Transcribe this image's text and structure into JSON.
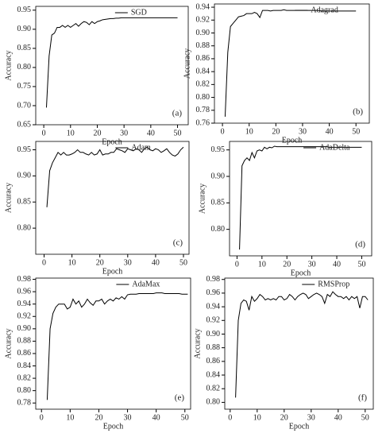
{
  "chart_data": [
    {
      "type": "line",
      "xlabel": "Epoch",
      "ylabel": "Accuracy",
      "annotation": "(a)",
      "xlim": [
        -3,
        54
      ],
      "xticks": [
        0,
        10,
        20,
        30,
        40,
        50
      ],
      "ylim": [
        0.65,
        0.96
      ],
      "yticks": [
        0.65,
        {
          "value": 0.7,
          "label": "0.70"
        },
        0.75,
        {
          "value": 0.8,
          "label": "0.80"
        },
        0.85,
        {
          "value": 0.9,
          "label": "0.90"
        },
        0.95
      ],
      "x": [
        1,
        2,
        3,
        4,
        5,
        6,
        7,
        8,
        9,
        10,
        11,
        12,
        13,
        14,
        15,
        16,
        17,
        18,
        19,
        20,
        21,
        22,
        23,
        24,
        25,
        26,
        27,
        28,
        29,
        30,
        31,
        32,
        33,
        34,
        35,
        36,
        37,
        38,
        39,
        40,
        41,
        42,
        43,
        44,
        45,
        46,
        47,
        48,
        49,
        50
      ],
      "series": [
        {
          "name": "SGD",
          "color": "#000000",
          "values": [
            0.695,
            0.83,
            0.885,
            0.89,
            0.905,
            0.905,
            0.91,
            0.905,
            0.91,
            0.905,
            0.91,
            0.915,
            0.908,
            0.915,
            0.92,
            0.918,
            0.912,
            0.92,
            0.915,
            0.92,
            0.922,
            0.925,
            0.926,
            0.927,
            0.928,
            0.928,
            0.929,
            0.929,
            0.93,
            0.93,
            0.93,
            0.93,
            0.93,
            0.93,
            0.93,
            0.93,
            0.93,
            0.93,
            0.93,
            0.93,
            0.93,
            0.93,
            0.93,
            0.93,
            0.93,
            0.93,
            0.93,
            0.93,
            0.93,
            0.93
          ]
        }
      ]
    },
    {
      "type": "line",
      "xlabel": "Epoch",
      "ylabel": "Accuracy",
      "annotation": "(b)",
      "xlim": [
        -3,
        55
      ],
      "xticks": [
        0,
        10,
        20,
        30,
        40,
        50
      ],
      "ylim": [
        0.76,
        0.945
      ],
      "yticks": [
        0.76,
        0.78,
        {
          "value": 0.8,
          "label": "0.80"
        },
        0.82,
        0.84,
        0.86,
        0.88,
        {
          "value": 0.9,
          "label": "0.90"
        },
        0.92,
        0.94
      ],
      "x": [
        1,
        2,
        3,
        4,
        5,
        6,
        7,
        8,
        9,
        10,
        11,
        12,
        13,
        14,
        15,
        16,
        17,
        18,
        19,
        20,
        21,
        22,
        23,
        24,
        25,
        26,
        27,
        28,
        29,
        30,
        31,
        32,
        33,
        34,
        35,
        36,
        37,
        38,
        39,
        40,
        41,
        42,
        43,
        44,
        45,
        46,
        47,
        48,
        49,
        50
      ],
      "series": [
        {
          "name": "Adagrad",
          "color": "#000000",
          "values": [
            0.77,
            0.87,
            0.91,
            0.915,
            0.92,
            0.925,
            0.926,
            0.927,
            0.93,
            0.93,
            0.93,
            0.932,
            0.93,
            0.924,
            0.935,
            0.935,
            0.935,
            0.934,
            0.935,
            0.935,
            0.935,
            0.935,
            0.936,
            0.935,
            0.935,
            0.935,
            0.935,
            0.935,
            0.935,
            0.935,
            0.935,
            0.935,
            0.935,
            0.935,
            0.935,
            0.935,
            0.934,
            0.934,
            0.934,
            0.934,
            0.934,
            0.934,
            0.934,
            0.934,
            0.934,
            0.934,
            0.934,
            0.934,
            0.934,
            0.934
          ]
        }
      ]
    },
    {
      "type": "line",
      "xlabel": "Epoch",
      "ylabel": "Accuracy",
      "annotation": "(c)",
      "xlim": [
        -3,
        52
      ],
      "xticks": [
        0,
        10,
        20,
        30,
        40,
        50
      ],
      "ylim": [
        0.75,
        0.966
      ],
      "yticks": [
        {
          "value": 0.8,
          "label": "0.80"
        },
        0.85,
        {
          "value": 0.9,
          "label": "0.90"
        },
        0.95
      ],
      "x": [
        1,
        2,
        3,
        4,
        5,
        6,
        7,
        8,
        9,
        10,
        11,
        12,
        13,
        14,
        15,
        16,
        17,
        18,
        19,
        20,
        21,
        22,
        23,
        24,
        25,
        26,
        27,
        28,
        29,
        30,
        31,
        32,
        33,
        34,
        35,
        36,
        37,
        38,
        39,
        40,
        41,
        42,
        43,
        44,
        45,
        46,
        47,
        48,
        49,
        50
      ],
      "series": [
        {
          "name": "Adam",
          "color": "#000000",
          "values": [
            0.84,
            0.91,
            0.925,
            0.935,
            0.945,
            0.94,
            0.945,
            0.94,
            0.94,
            0.942,
            0.945,
            0.95,
            0.945,
            0.945,
            0.942,
            0.94,
            0.945,
            0.94,
            0.942,
            0.95,
            0.94,
            0.942,
            0.942,
            0.945,
            0.945,
            0.952,
            0.95,
            0.948,
            0.945,
            0.952,
            0.95,
            0.948,
            0.952,
            0.95,
            0.945,
            0.952,
            0.955,
            0.95,
            0.948,
            0.952,
            0.95,
            0.945,
            0.948,
            0.952,
            0.945,
            0.94,
            0.938,
            0.942,
            0.95,
            0.955
          ]
        }
      ]
    },
    {
      "type": "line",
      "xlabel": "Epoch",
      "ylabel": "Accuracy",
      "annotation": "(d)",
      "xlim": [
        -3,
        54
      ],
      "xticks": [
        0,
        10,
        20,
        30,
        40,
        50
      ],
      "ylim": [
        0.75,
        0.966
      ],
      "yticks": [
        {
          "value": 0.8,
          "label": "0.80"
        },
        0.85,
        {
          "value": 0.9,
          "label": "0.90"
        },
        0.95
      ],
      "x": [
        1,
        2,
        3,
        4,
        5,
        6,
        7,
        8,
        9,
        10,
        11,
        12,
        13,
        14,
        15,
        16,
        17,
        18,
        19,
        20,
        21,
        22,
        23,
        24,
        25,
        26,
        27,
        28,
        29,
        30,
        31,
        32,
        33,
        34,
        35,
        36,
        37,
        38,
        39,
        40,
        41,
        42,
        43,
        44,
        45,
        46,
        47,
        48,
        49,
        50
      ],
      "series": [
        {
          "name": "AdaDelta",
          "color": "#000000",
          "values": [
            0.762,
            0.92,
            0.93,
            0.935,
            0.93,
            0.945,
            0.935,
            0.948,
            0.95,
            0.948,
            0.955,
            0.952,
            0.955,
            0.954,
            0.957,
            0.956,
            0.956,
            0.956,
            0.956,
            0.956,
            0.956,
            0.956,
            0.956,
            0.956,
            0.956,
            0.956,
            0.956,
            0.956,
            0.956,
            0.956,
            0.956,
            0.956,
            0.956,
            0.956,
            0.956,
            0.956,
            0.955,
            0.955,
            0.955,
            0.955,
            0.955,
            0.955,
            0.955,
            0.955,
            0.955,
            0.955,
            0.955,
            0.955,
            0.955,
            0.955
          ]
        }
      ]
    },
    {
      "type": "line",
      "xlabel": "Epoch",
      "ylabel": "Accuracy",
      "annotation": "(e)",
      "xlim": [
        -2,
        52
      ],
      "xticks": [
        0,
        10,
        20,
        30,
        40,
        50
      ],
      "ylim": [
        0.77,
        0.982
      ],
      "yticks": [
        0.78,
        {
          "value": 0.8,
          "label": "0.80"
        },
        0.82,
        0.84,
        0.86,
        0.88,
        {
          "value": 0.9,
          "label": "0.90"
        },
        0.92,
        0.94,
        0.96,
        0.98
      ],
      "x": [
        2,
        3,
        4,
        5,
        6,
        7,
        8,
        9,
        10,
        11,
        12,
        13,
        14,
        15,
        16,
        17,
        18,
        19,
        20,
        21,
        22,
        23,
        24,
        25,
        26,
        27,
        28,
        29,
        30,
        31,
        32,
        33,
        34,
        35,
        36,
        37,
        38,
        39,
        40,
        41,
        42,
        43,
        44,
        45,
        46,
        47,
        48,
        49,
        50,
        51
      ],
      "series": [
        {
          "name": "AdaMax",
          "color": "#000000",
          "values": [
            0.785,
            0.9,
            0.925,
            0.935,
            0.94,
            0.94,
            0.94,
            0.932,
            0.935,
            0.948,
            0.94,
            0.945,
            0.935,
            0.94,
            0.948,
            0.942,
            0.938,
            0.945,
            0.945,
            0.948,
            0.94,
            0.945,
            0.948,
            0.945,
            0.95,
            0.948,
            0.952,
            0.948,
            0.955,
            0.956,
            0.956,
            0.956,
            0.957,
            0.957,
            0.957,
            0.957,
            0.957,
            0.957,
            0.958,
            0.958,
            0.958,
            0.957,
            0.957,
            0.957,
            0.957,
            0.957,
            0.957,
            0.956,
            0.956,
            0.956
          ]
        }
      ]
    },
    {
      "type": "line",
      "xlabel": "Epoch",
      "ylabel": "Accuracy",
      "annotation": "(f)",
      "xlim": [
        -2,
        53
      ],
      "xticks": [
        0,
        10,
        20,
        30,
        40,
        50
      ],
      "ylim": [
        0.79,
        0.982
      ],
      "yticks": [
        {
          "value": 0.8,
          "label": "0.80"
        },
        0.82,
        0.84,
        0.86,
        0.88,
        {
          "value": 0.9,
          "label": "0.90"
        },
        0.92,
        0.94,
        0.96,
        0.98
      ],
      "x": [
        2,
        3,
        4,
        5,
        6,
        7,
        8,
        9,
        10,
        11,
        12,
        13,
        14,
        15,
        16,
        17,
        18,
        19,
        20,
        21,
        22,
        23,
        24,
        25,
        26,
        27,
        28,
        29,
        30,
        31,
        32,
        33,
        34,
        35,
        36,
        37,
        38,
        39,
        40,
        41,
        42,
        43,
        44,
        45,
        46,
        47,
        48,
        49,
        50,
        51
      ],
      "series": [
        {
          "name": "RMSProp",
          "color": "#000000",
          "values": [
            0.807,
            0.92,
            0.945,
            0.95,
            0.948,
            0.935,
            0.955,
            0.948,
            0.952,
            0.958,
            0.955,
            0.95,
            0.952,
            0.95,
            0.952,
            0.95,
            0.955,
            0.955,
            0.95,
            0.952,
            0.958,
            0.955,
            0.95,
            0.955,
            0.958,
            0.96,
            0.958,
            0.952,
            0.955,
            0.958,
            0.96,
            0.958,
            0.955,
            0.945,
            0.958,
            0.955,
            0.962,
            0.958,
            0.955,
            0.955,
            0.952,
            0.955,
            0.95,
            0.955,
            0.952,
            0.955,
            0.938,
            0.955,
            0.955,
            0.95
          ]
        }
      ]
    }
  ]
}
